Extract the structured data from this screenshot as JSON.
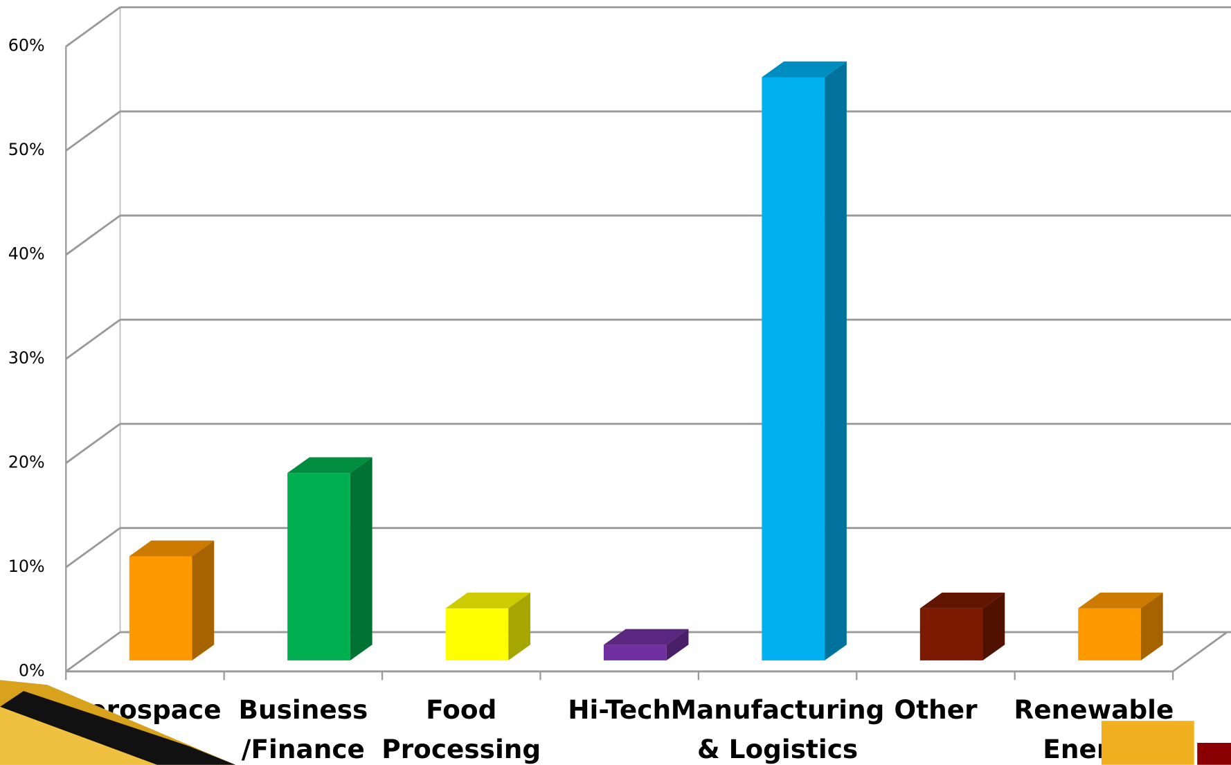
{
  "chart_data": {
    "type": "bar3d",
    "categories": [
      [
        "Aerospace"
      ],
      [
        "Business",
        "/Finance"
      ],
      [
        "Food",
        "Processing"
      ],
      [
        "Hi-Tech"
      ],
      [
        "Manufacturing",
        "& Logistics"
      ],
      [
        "Other"
      ],
      [
        "Renewable",
        "Energy"
      ]
    ],
    "values": [
      10,
      18,
      5,
      1.5,
      56,
      5,
      5
    ],
    "colors": [
      "#ff9900",
      "#00b050",
      "#ffff00",
      "#7030a0",
      "#00b0f0",
      "#7b1a00",
      "#ff9900"
    ],
    "ylim": [
      0,
      60
    ],
    "yticks": [
      {
        "value": 0,
        "label": "0%"
      },
      {
        "value": 10,
        "label": "10%"
      },
      {
        "value": 20,
        "label": "20%"
      },
      {
        "value": 30,
        "label": "30%"
      },
      {
        "value": 40,
        "label": "40%"
      },
      {
        "value": 50,
        "label": "50%"
      },
      {
        "value": 60,
        "label": "60%"
      }
    ],
    "grid": true
  }
}
